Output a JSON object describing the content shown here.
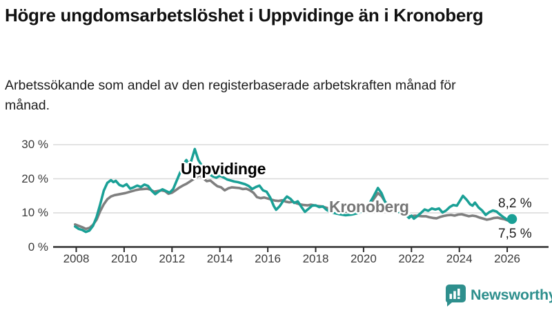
{
  "title": "Högre ungdomsarbetslöshet i Uppvidinge än i Kronoberg",
  "subtitle": "Arbetssökande som andel av den registerbaserade arbetskraften månad för månad.",
  "branding": {
    "logo_text": "Newsworthy",
    "logo_color": "#2e8f8d",
    "logo_icon": "bar-chart-speech-bubble"
  },
  "chart_data": {
    "type": "line",
    "title": "Högre ungdomsarbetslöshet i Uppvidinge än i Kronoberg",
    "subtitle": "Arbetssökande som andel av den registerbaserade arbetskraften månad för månad.",
    "grid": "horizontal",
    "legend_position": "inline-labels",
    "x_axis": {
      "ticks": [
        2008,
        2010,
        2012,
        2014,
        2016,
        2018,
        2020,
        2022,
        2024,
        2026
      ],
      "range": [
        2007.8,
        2026.7
      ]
    },
    "y_axis": {
      "ticks": [
        0,
        10,
        20,
        30
      ],
      "tick_labels": [
        "0 %",
        "10 %",
        "20 %",
        "30 %"
      ],
      "range": [
        0,
        31
      ],
      "unit": "%"
    },
    "series": [
      {
        "name": "Kronoberg",
        "color": "#7f7f7f",
        "end_label": "7,5 %",
        "end_value": 7.5,
        "end_dot": false,
        "points": [
          [
            2007.95,
            6.6
          ],
          [
            2008.1,
            6.2
          ],
          [
            2008.25,
            5.8
          ],
          [
            2008.4,
            5.3
          ],
          [
            2008.55,
            5.6
          ],
          [
            2008.7,
            6.5
          ],
          [
            2008.85,
            8.0
          ],
          [
            2009.0,
            10.5
          ],
          [
            2009.15,
            12.5
          ],
          [
            2009.3,
            14.0
          ],
          [
            2009.45,
            14.8
          ],
          [
            2009.6,
            15.2
          ],
          [
            2009.75,
            15.4
          ],
          [
            2009.9,
            15.6
          ],
          [
            2010.05,
            15.8
          ],
          [
            2010.2,
            16.1
          ],
          [
            2010.35,
            16.4
          ],
          [
            2010.5,
            16.7
          ],
          [
            2010.65,
            16.9
          ],
          [
            2010.8,
            17.0
          ],
          [
            2010.95,
            17.1
          ],
          [
            2011.1,
            16.8
          ],
          [
            2011.25,
            16.2
          ],
          [
            2011.4,
            16.4
          ],
          [
            2011.55,
            16.6
          ],
          [
            2011.7,
            16.4
          ],
          [
            2011.85,
            15.6
          ],
          [
            2012.0,
            15.9
          ],
          [
            2012.15,
            16.6
          ],
          [
            2012.3,
            17.4
          ],
          [
            2012.45,
            18.0
          ],
          [
            2012.6,
            18.5
          ],
          [
            2012.75,
            19.2
          ],
          [
            2012.9,
            19.9
          ],
          [
            2013.05,
            20.6
          ],
          [
            2013.15,
            21.0
          ],
          [
            2013.3,
            20.2
          ],
          [
            2013.45,
            19.3
          ],
          [
            2013.6,
            19.5
          ],
          [
            2013.75,
            18.6
          ],
          [
            2013.9,
            17.8
          ],
          [
            2014.05,
            17.5
          ],
          [
            2014.2,
            16.6
          ],
          [
            2014.35,
            17.2
          ],
          [
            2014.5,
            17.5
          ],
          [
            2014.65,
            17.4
          ],
          [
            2014.8,
            17.3
          ],
          [
            2014.95,
            17.0
          ],
          [
            2015.1,
            17.1
          ],
          [
            2015.25,
            16.6
          ],
          [
            2015.4,
            15.9
          ],
          [
            2015.55,
            14.6
          ],
          [
            2015.7,
            14.3
          ],
          [
            2015.85,
            14.5
          ],
          [
            2016.0,
            14.2
          ],
          [
            2016.15,
            13.9
          ],
          [
            2016.3,
            13.6
          ],
          [
            2016.45,
            13.5
          ],
          [
            2016.6,
            13.7
          ],
          [
            2016.75,
            13.3
          ],
          [
            2016.9,
            13.1
          ],
          [
            2017.05,
            13.3
          ],
          [
            2017.2,
            12.8
          ],
          [
            2017.35,
            12.5
          ],
          [
            2017.5,
            12.3
          ],
          [
            2017.65,
            12.2
          ],
          [
            2017.8,
            12.4
          ],
          [
            2017.95,
            12.2
          ],
          [
            2018.1,
            12.0
          ],
          [
            2018.25,
            11.9
          ],
          [
            2018.4,
            11.6
          ],
          [
            2018.55,
            11.3
          ],
          [
            2018.7,
            11.1
          ],
          [
            2018.9,
            10.8
          ],
          [
            2019.1,
            10.5
          ],
          [
            2019.35,
            10.3
          ],
          [
            2019.6,
            10.4
          ],
          [
            2019.85,
            10.7
          ],
          [
            2020.1,
            11.2
          ],
          [
            2020.3,
            12.8
          ],
          [
            2020.45,
            14.3
          ],
          [
            2020.6,
            15.8
          ],
          [
            2020.75,
            14.9
          ],
          [
            2020.9,
            13.3
          ],
          [
            2021.05,
            12.1
          ],
          [
            2021.2,
            11.3
          ],
          [
            2021.4,
            10.4
          ],
          [
            2021.6,
            9.7
          ],
          [
            2021.8,
            9.1
          ],
          [
            2022.0,
            9.0
          ],
          [
            2022.15,
            9.2
          ],
          [
            2022.3,
            9.1
          ],
          [
            2022.45,
            9.0
          ],
          [
            2022.6,
            9.0
          ],
          [
            2022.75,
            8.7
          ],
          [
            2022.9,
            8.5
          ],
          [
            2023.05,
            8.4
          ],
          [
            2023.2,
            8.8
          ],
          [
            2023.35,
            9.1
          ],
          [
            2023.5,
            9.3
          ],
          [
            2023.65,
            9.4
          ],
          [
            2023.8,
            9.2
          ],
          [
            2023.95,
            9.5
          ],
          [
            2024.1,
            9.6
          ],
          [
            2024.25,
            9.3
          ],
          [
            2024.4,
            9.0
          ],
          [
            2024.55,
            9.2
          ],
          [
            2024.7,
            9.0
          ],
          [
            2024.85,
            8.6
          ],
          [
            2025.0,
            8.3
          ],
          [
            2025.15,
            8.0
          ],
          [
            2025.3,
            8.2
          ],
          [
            2025.45,
            8.5
          ],
          [
            2025.6,
            8.6
          ],
          [
            2025.75,
            8.3
          ],
          [
            2025.9,
            8.1
          ],
          [
            2026.05,
            7.7
          ],
          [
            2026.2,
            7.5
          ]
        ]
      },
      {
        "name": "Uppvidinge",
        "color": "#1aa096",
        "end_label": "8,2 %",
        "end_value": 8.2,
        "end_dot": true,
        "points": [
          [
            2007.95,
            6.0
          ],
          [
            2008.1,
            5.3
          ],
          [
            2008.25,
            5.0
          ],
          [
            2008.4,
            4.4
          ],
          [
            2008.55,
            4.8
          ],
          [
            2008.7,
            6.2
          ],
          [
            2008.85,
            8.8
          ],
          [
            2009.0,
            12.5
          ],
          [
            2009.15,
            16.5
          ],
          [
            2009.3,
            18.8
          ],
          [
            2009.45,
            19.6
          ],
          [
            2009.55,
            19.0
          ],
          [
            2009.65,
            19.4
          ],
          [
            2009.8,
            18.2
          ],
          [
            2009.95,
            17.8
          ],
          [
            2010.1,
            18.4
          ],
          [
            2010.25,
            17.1
          ],
          [
            2010.4,
            17.5
          ],
          [
            2010.55,
            18.0
          ],
          [
            2010.7,
            17.6
          ],
          [
            2010.85,
            18.3
          ],
          [
            2011.0,
            17.9
          ],
          [
            2011.15,
            16.5
          ],
          [
            2011.3,
            15.5
          ],
          [
            2011.45,
            16.3
          ],
          [
            2011.6,
            16.9
          ],
          [
            2011.75,
            16.4
          ],
          [
            2011.9,
            15.9
          ],
          [
            2012.05,
            17.0
          ],
          [
            2012.2,
            19.5
          ],
          [
            2012.35,
            22.0
          ],
          [
            2012.5,
            24.5
          ],
          [
            2012.6,
            25.5
          ],
          [
            2012.7,
            24.3
          ],
          [
            2012.8,
            25.2
          ],
          [
            2012.95,
            28.7
          ],
          [
            2013.1,
            25.5
          ],
          [
            2013.25,
            23.8
          ],
          [
            2013.4,
            22.6
          ],
          [
            2013.55,
            21.4
          ],
          [
            2013.7,
            20.7
          ],
          [
            2013.85,
            20.3
          ],
          [
            2014.0,
            20.9
          ],
          [
            2014.15,
            20.4
          ],
          [
            2014.3,
            19.8
          ],
          [
            2014.45,
            19.5
          ],
          [
            2014.6,
            19.2
          ],
          [
            2014.75,
            19.0
          ],
          [
            2014.9,
            18.7
          ],
          [
            2015.05,
            18.4
          ],
          [
            2015.2,
            17.9
          ],
          [
            2015.35,
            17.0
          ],
          [
            2015.5,
            17.6
          ],
          [
            2015.65,
            18.0
          ],
          [
            2015.8,
            16.6
          ],
          [
            2015.95,
            16.2
          ],
          [
            2016.1,
            14.5
          ],
          [
            2016.25,
            12.0
          ],
          [
            2016.35,
            10.9
          ],
          [
            2016.5,
            12.0
          ],
          [
            2016.65,
            13.6
          ],
          [
            2016.8,
            14.8
          ],
          [
            2016.95,
            14.1
          ],
          [
            2017.1,
            12.9
          ],
          [
            2017.25,
            13.4
          ],
          [
            2017.4,
            11.8
          ],
          [
            2017.55,
            10.3
          ],
          [
            2017.7,
            11.2
          ],
          [
            2017.85,
            12.1
          ],
          [
            2018.0,
            12.2
          ],
          [
            2018.15,
            11.7
          ],
          [
            2018.3,
            11.9
          ],
          [
            2018.45,
            10.9
          ],
          [
            2018.6,
            10.3
          ],
          [
            2018.8,
            9.9
          ],
          [
            2019.0,
            9.6
          ],
          [
            2019.25,
            9.3
          ],
          [
            2019.5,
            9.5
          ],
          [
            2019.75,
            9.9
          ],
          [
            2020.0,
            10.5
          ],
          [
            2020.2,
            12.2
          ],
          [
            2020.4,
            14.6
          ],
          [
            2020.6,
            17.3
          ],
          [
            2020.75,
            15.8
          ],
          [
            2020.9,
            13.2
          ],
          [
            2021.05,
            12.4
          ],
          [
            2021.2,
            11.4
          ],
          [
            2021.4,
            10.5
          ],
          [
            2021.6,
            9.9
          ],
          [
            2021.75,
            9.6
          ],
          [
            2021.9,
            8.5
          ],
          [
            2022.0,
            9.2
          ],
          [
            2022.1,
            8.3
          ],
          [
            2022.25,
            9.1
          ],
          [
            2022.4,
            10.0
          ],
          [
            2022.55,
            11.0
          ],
          [
            2022.7,
            10.6
          ],
          [
            2022.85,
            11.3
          ],
          [
            2023.0,
            11.0
          ],
          [
            2023.15,
            11.3
          ],
          [
            2023.3,
            10.1
          ],
          [
            2023.45,
            10.7
          ],
          [
            2023.6,
            11.7
          ],
          [
            2023.75,
            12.3
          ],
          [
            2023.9,
            12.1
          ],
          [
            2024.05,
            13.8
          ],
          [
            2024.15,
            15.0
          ],
          [
            2024.3,
            13.9
          ],
          [
            2024.45,
            12.5
          ],
          [
            2024.55,
            12.1
          ],
          [
            2024.65,
            13.0
          ],
          [
            2024.8,
            11.6
          ],
          [
            2024.95,
            10.7
          ],
          [
            2025.1,
            9.4
          ],
          [
            2025.25,
            10.2
          ],
          [
            2025.4,
            10.7
          ],
          [
            2025.55,
            10.4
          ],
          [
            2025.7,
            9.5
          ],
          [
            2025.85,
            8.7
          ],
          [
            2026.0,
            8.0
          ],
          [
            2026.2,
            8.2
          ]
        ]
      }
    ]
  }
}
